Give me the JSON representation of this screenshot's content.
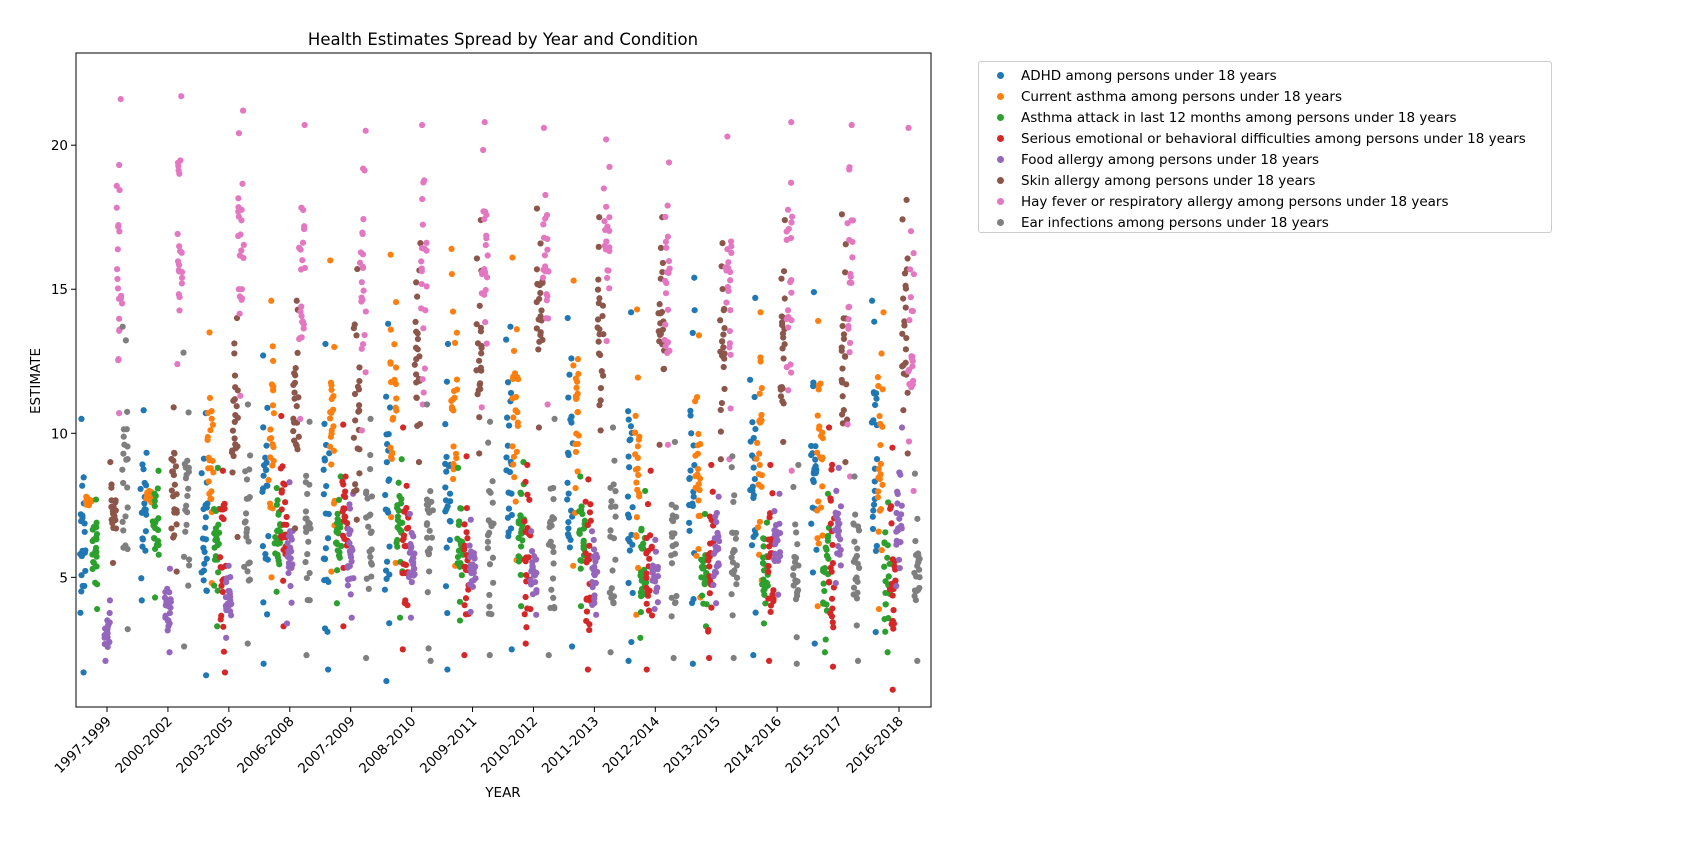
{
  "chart_data": {
    "type": "scatter",
    "title": "Health Estimates Spread by Year and Condition",
    "xlabel": "YEAR",
    "ylabel": "ESTIMATE",
    "ylim": [
      0.5,
      23.2
    ],
    "yticks": [
      5,
      10,
      15,
      20
    ],
    "grid": false,
    "legend_position": "outside-right",
    "categories": [
      "1997-1999",
      "2000-2002",
      "2003-2005",
      "2006-2008",
      "2007-2009",
      "2008-2010",
      "2009-2011",
      "2010-2012",
      "2011-2013",
      "2012-2014",
      "2013-2015",
      "2014-2016",
      "2015-2017",
      "2016-2018"
    ],
    "series": [
      {
        "name": "ADHD among persons under 18 years",
        "color": "#1f77b4",
        "offset": -0.4,
        "summary": [
          [
            1.7,
            10.5
          ],
          [
            4.2,
            10.8
          ],
          [
            1.6,
            10.7
          ],
          [
            2.0,
            12.7
          ],
          [
            1.8,
            13.1
          ],
          [
            1.4,
            13.8
          ],
          [
            1.8,
            13.1
          ],
          [
            2.5,
            13.7
          ],
          [
            2.6,
            14.0
          ],
          [
            2.1,
            14.2
          ],
          [
            2.0,
            15.4
          ],
          [
            2.3,
            14.7
          ],
          [
            2.7,
            14.9
          ],
          [
            3.1,
            14.6
          ]
        ]
      },
      {
        "name": "Current asthma among persons under 18 years",
        "color": "#ff7f0e",
        "offset": -0.3,
        "summary": [
          [
            7.5,
            7.8
          ],
          [
            7.6,
            8.0
          ],
          [
            4.8,
            13.5
          ],
          [
            5.0,
            14.6
          ],
          [
            5.2,
            16.0
          ],
          [
            5.5,
            16.2
          ],
          [
            5.4,
            16.4
          ],
          [
            5.6,
            16.1
          ],
          [
            5.4,
            15.3
          ],
          [
            3.7,
            14.3
          ],
          [
            4.3,
            13.4
          ],
          [
            4.9,
            14.2
          ],
          [
            4.0,
            13.9
          ],
          [
            3.9,
            14.2
          ]
        ]
      },
      {
        "name": "Asthma attack in last 12 months among persons under 18 years",
        "color": "#2ca02c",
        "offset": -0.2,
        "summary": [
          [
            3.9,
            7.7
          ],
          [
            4.3,
            8.7
          ],
          [
            3.3,
            8.8
          ],
          [
            4.5,
            8.1
          ],
          [
            4.1,
            8.5
          ],
          [
            3.6,
            9.1
          ],
          [
            3.5,
            8.8
          ],
          [
            4.0,
            9.0
          ],
          [
            4.0,
            8.5
          ],
          [
            2.9,
            8.0
          ],
          [
            3.3,
            7.2
          ],
          [
            3.4,
            6.9
          ],
          [
            2.4,
            7.9
          ],
          [
            2.4,
            7.6
          ]
        ]
      },
      {
        "name": "Serious emotional or behavioral difficulties among persons under 18 years",
        "color": "#d62728",
        "offset": -0.1,
        "summary": [
          [
            null,
            null
          ],
          [
            null,
            null
          ],
          [
            1.7,
            8.7
          ],
          [
            3.3,
            10.6
          ],
          [
            3.3,
            10.3
          ],
          [
            2.5,
            10.2
          ],
          [
            2.3,
            9.2
          ],
          [
            2.7,
            8.9
          ],
          [
            1.8,
            8.4
          ],
          [
            1.8,
            8.7
          ],
          [
            2.2,
            8.9
          ],
          [
            2.1,
            8.9
          ],
          [
            1.9,
            10.2
          ],
          [
            1.1,
            9.5
          ]
        ]
      },
      {
        "name": "Food allergy among persons under 18 years",
        "color": "#9467bd",
        "offset": 0.0,
        "summary": [
          [
            2.1,
            4.2
          ],
          [
            2.4,
            5.3
          ],
          [
            2.9,
            5.4
          ],
          [
            3.4,
            8.3
          ],
          [
            3.6,
            7.9
          ],
          [
            3.6,
            7.2
          ],
          [
            3.8,
            7.0
          ],
          [
            3.7,
            6.6
          ],
          [
            3.7,
            6.6
          ],
          [
            3.9,
            6.3
          ],
          [
            4.1,
            7.8
          ],
          [
            4.4,
            7.9
          ],
          [
            4.8,
            8.8
          ],
          [
            4.7,
            10.2
          ]
        ]
      },
      {
        "name": "Skin allergy among persons under 18 years",
        "color": "#8c564b",
        "offset": 0.1,
        "summary": [
          [
            5.5,
            9.0
          ],
          [
            5.2,
            10.9
          ],
          [
            6.4,
            14.0
          ],
          [
            6.7,
            14.6
          ],
          [
            7.0,
            15.7
          ],
          [
            9.0,
            16.6
          ],
          [
            9.3,
            17.4
          ],
          [
            10.2,
            17.8
          ],
          [
            10.1,
            17.5
          ],
          [
            9.6,
            17.5
          ],
          [
            9.1,
            16.6
          ],
          [
            9.7,
            17.4
          ],
          [
            9.0,
            17.6
          ],
          [
            9.3,
            18.1
          ]
        ]
      },
      {
        "name": "Hay fever or respiratory allergy among persons under 18 years",
        "color": "#e377c2",
        "offset": 0.2,
        "summary": [
          [
            10.7,
            21.6
          ],
          [
            12.4,
            21.7
          ],
          [
            11.3,
            21.2
          ],
          [
            10.5,
            20.7
          ],
          [
            10.1,
            20.5
          ],
          [
            11.0,
            20.7
          ],
          [
            10.9,
            20.8
          ],
          [
            11.0,
            20.6
          ],
          [
            13.2,
            20.2
          ],
          [
            9.6,
            19.4
          ],
          [
            9.1,
            20.3
          ],
          [
            8.7,
            20.8
          ],
          [
            8.5,
            20.7
          ],
          [
            8.0,
            20.6
          ]
        ]
      },
      {
        "name": "Ear infections among persons under 18 years",
        "color": "#7f7f7f",
        "offset": 0.3,
        "summary": [
          [
            3.2,
            13.7
          ],
          [
            2.6,
            12.8
          ],
          [
            2.7,
            11.0
          ],
          [
            2.3,
            10.4
          ],
          [
            2.2,
            10.5
          ],
          [
            2.1,
            11.0
          ],
          [
            2.3,
            10.4
          ],
          [
            2.3,
            10.5
          ],
          [
            2.4,
            10.2
          ],
          [
            2.2,
            9.7
          ],
          [
            2.2,
            9.2
          ],
          [
            2.0,
            8.9
          ],
          [
            2.1,
            8.5
          ],
          [
            2.1,
            8.6
          ]
        ]
      }
    ]
  }
}
